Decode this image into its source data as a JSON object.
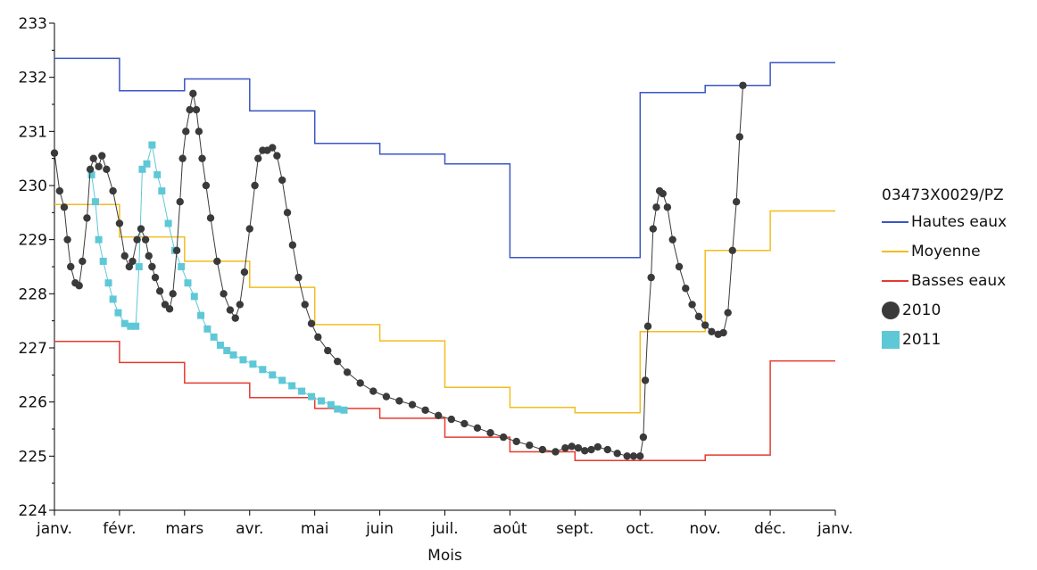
{
  "chart_data": {
    "type": "line",
    "title": "",
    "xlabel": "Mois",
    "ylabel": "",
    "ylim": [
      224,
      233
    ],
    "yticks": [
      "224",
      "225",
      "226",
      "227",
      "228",
      "229",
      "230",
      "231",
      "232",
      "233"
    ],
    "xticks": [
      "janv.",
      "févr.",
      "mars",
      "avr.",
      "mai",
      "juin",
      "juil.",
      "août",
      "sept.",
      "oct.",
      "nov.",
      "déc.",
      "janv."
    ],
    "legend_title": "03473X0029/PZ",
    "legend_position": "right",
    "step_series": [
      {
        "name": "Hautes eaux",
        "color": "#3b55c4",
        "values": [
          232.35,
          231.75,
          231.97,
          231.38,
          230.78,
          230.58,
          230.4,
          228.67,
          228.67,
          231.72,
          231.85,
          232.27
        ]
      },
      {
        "name": "Moyenne",
        "color": "#f2bd1e",
        "values": [
          229.65,
          229.05,
          228.6,
          228.12,
          227.43,
          227.13,
          226.27,
          225.9,
          225.8,
          227.3,
          228.8,
          229.53
        ]
      },
      {
        "name": "Basses eaux",
        "color": "#e53b2f",
        "values": [
          227.12,
          226.73,
          226.35,
          226.08,
          225.88,
          225.7,
          225.35,
          225.08,
          224.92,
          224.92,
          225.02,
          226.76
        ]
      }
    ],
    "scatter_series": [
      {
        "name": "2010",
        "color": "#3a3a3a",
        "marker": "circle",
        "points": [
          [
            0.0,
            230.6
          ],
          [
            0.08,
            229.9
          ],
          [
            0.15,
            229.6
          ],
          [
            0.2,
            229.0
          ],
          [
            0.25,
            228.5
          ],
          [
            0.32,
            228.2
          ],
          [
            0.38,
            228.15
          ],
          [
            0.43,
            228.6
          ],
          [
            0.5,
            229.4
          ],
          [
            0.55,
            230.3
          ],
          [
            0.6,
            230.5
          ],
          [
            0.68,
            230.35
          ],
          [
            0.73,
            230.55
          ],
          [
            0.8,
            230.3
          ],
          [
            0.9,
            229.9
          ],
          [
            1.0,
            229.3
          ],
          [
            1.08,
            228.7
          ],
          [
            1.15,
            228.5
          ],
          [
            1.2,
            228.6
          ],
          [
            1.27,
            229.0
          ],
          [
            1.33,
            229.2
          ],
          [
            1.4,
            229.0
          ],
          [
            1.45,
            228.7
          ],
          [
            1.5,
            228.5
          ],
          [
            1.55,
            228.3
          ],
          [
            1.62,
            228.05
          ],
          [
            1.7,
            227.8
          ],
          [
            1.77,
            227.72
          ],
          [
            1.82,
            228.0
          ],
          [
            1.88,
            228.8
          ],
          [
            1.93,
            229.7
          ],
          [
            1.97,
            230.5
          ],
          [
            2.02,
            231.0
          ],
          [
            2.08,
            231.4
          ],
          [
            2.13,
            231.7
          ],
          [
            2.18,
            231.4
          ],
          [
            2.22,
            231.0
          ],
          [
            2.27,
            230.5
          ],
          [
            2.33,
            230.0
          ],
          [
            2.4,
            229.4
          ],
          [
            2.5,
            228.6
          ],
          [
            2.6,
            228.0
          ],
          [
            2.7,
            227.7
          ],
          [
            2.78,
            227.55
          ],
          [
            2.85,
            227.8
          ],
          [
            2.92,
            228.4
          ],
          [
            3.0,
            229.2
          ],
          [
            3.08,
            230.0
          ],
          [
            3.13,
            230.5
          ],
          [
            3.2,
            230.65
          ],
          [
            3.27,
            230.65
          ],
          [
            3.35,
            230.7
          ],
          [
            3.42,
            230.55
          ],
          [
            3.5,
            230.1
          ],
          [
            3.58,
            229.5
          ],
          [
            3.66,
            228.9
          ],
          [
            3.75,
            228.3
          ],
          [
            3.85,
            227.8
          ],
          [
            3.95,
            227.45
          ],
          [
            4.05,
            227.2
          ],
          [
            4.2,
            226.95
          ],
          [
            4.35,
            226.75
          ],
          [
            4.5,
            226.55
          ],
          [
            4.7,
            226.35
          ],
          [
            4.9,
            226.2
          ],
          [
            5.1,
            226.1
          ],
          [
            5.3,
            226.02
          ],
          [
            5.5,
            225.95
          ],
          [
            5.7,
            225.85
          ],
          [
            5.9,
            225.75
          ],
          [
            6.1,
            225.68
          ],
          [
            6.3,
            225.6
          ],
          [
            6.5,
            225.52
          ],
          [
            6.7,
            225.43
          ],
          [
            6.9,
            225.35
          ],
          [
            7.1,
            225.27
          ],
          [
            7.3,
            225.2
          ],
          [
            7.5,
            225.12
          ],
          [
            7.7,
            225.08
          ],
          [
            7.85,
            225.15
          ],
          [
            7.95,
            225.18
          ],
          [
            8.05,
            225.15
          ],
          [
            8.15,
            225.1
          ],
          [
            8.25,
            225.12
          ],
          [
            8.35,
            225.17
          ],
          [
            8.5,
            225.12
          ],
          [
            8.65,
            225.05
          ],
          [
            8.8,
            225.0
          ],
          [
            8.9,
            225.0
          ],
          [
            9.0,
            225.0
          ],
          [
            9.05,
            225.35
          ],
          [
            9.08,
            226.4
          ],
          [
            9.12,
            227.4
          ],
          [
            9.17,
            228.3
          ],
          [
            9.2,
            229.2
          ],
          [
            9.25,
            229.6
          ],
          [
            9.3,
            229.9
          ],
          [
            9.35,
            229.85
          ],
          [
            9.42,
            229.6
          ],
          [
            9.5,
            229.0
          ],
          [
            9.6,
            228.5
          ],
          [
            9.7,
            228.1
          ],
          [
            9.8,
            227.8
          ],
          [
            9.9,
            227.58
          ],
          [
            10.0,
            227.42
          ],
          [
            10.1,
            227.3
          ],
          [
            10.2,
            227.25
          ],
          [
            10.28,
            227.28
          ],
          [
            10.35,
            227.65
          ],
          [
            10.42,
            228.8
          ],
          [
            10.48,
            229.7
          ],
          [
            10.53,
            230.9
          ],
          [
            10.58,
            231.85
          ]
        ]
      },
      {
        "name": "2011",
        "color": "#5fc8d6",
        "marker": "square",
        "points": [
          [
            0.57,
            230.2
          ],
          [
            0.63,
            229.7
          ],
          [
            0.68,
            229.0
          ],
          [
            0.75,
            228.6
          ],
          [
            0.83,
            228.2
          ],
          [
            0.9,
            227.9
          ],
          [
            0.98,
            227.65
          ],
          [
            1.08,
            227.45
          ],
          [
            1.17,
            227.4
          ],
          [
            1.25,
            227.4
          ],
          [
            1.3,
            228.5
          ],
          [
            1.35,
            230.3
          ],
          [
            1.42,
            230.4
          ],
          [
            1.5,
            230.75
          ],
          [
            1.58,
            230.2
          ],
          [
            1.65,
            229.9
          ],
          [
            1.75,
            229.3
          ],
          [
            1.85,
            228.8
          ],
          [
            1.95,
            228.5
          ],
          [
            2.05,
            228.2
          ],
          [
            2.15,
            227.95
          ],
          [
            2.25,
            227.6
          ],
          [
            2.35,
            227.35
          ],
          [
            2.45,
            227.2
          ],
          [
            2.55,
            227.05
          ],
          [
            2.65,
            226.95
          ],
          [
            2.75,
            226.87
          ],
          [
            2.9,
            226.78
          ],
          [
            3.05,
            226.7
          ],
          [
            3.2,
            226.6
          ],
          [
            3.35,
            226.5
          ],
          [
            3.5,
            226.4
          ],
          [
            3.65,
            226.3
          ],
          [
            3.8,
            226.2
          ],
          [
            3.95,
            226.1
          ],
          [
            4.1,
            226.02
          ],
          [
            4.25,
            225.95
          ],
          [
            4.35,
            225.87
          ],
          [
            4.45,
            225.85
          ]
        ]
      }
    ]
  }
}
